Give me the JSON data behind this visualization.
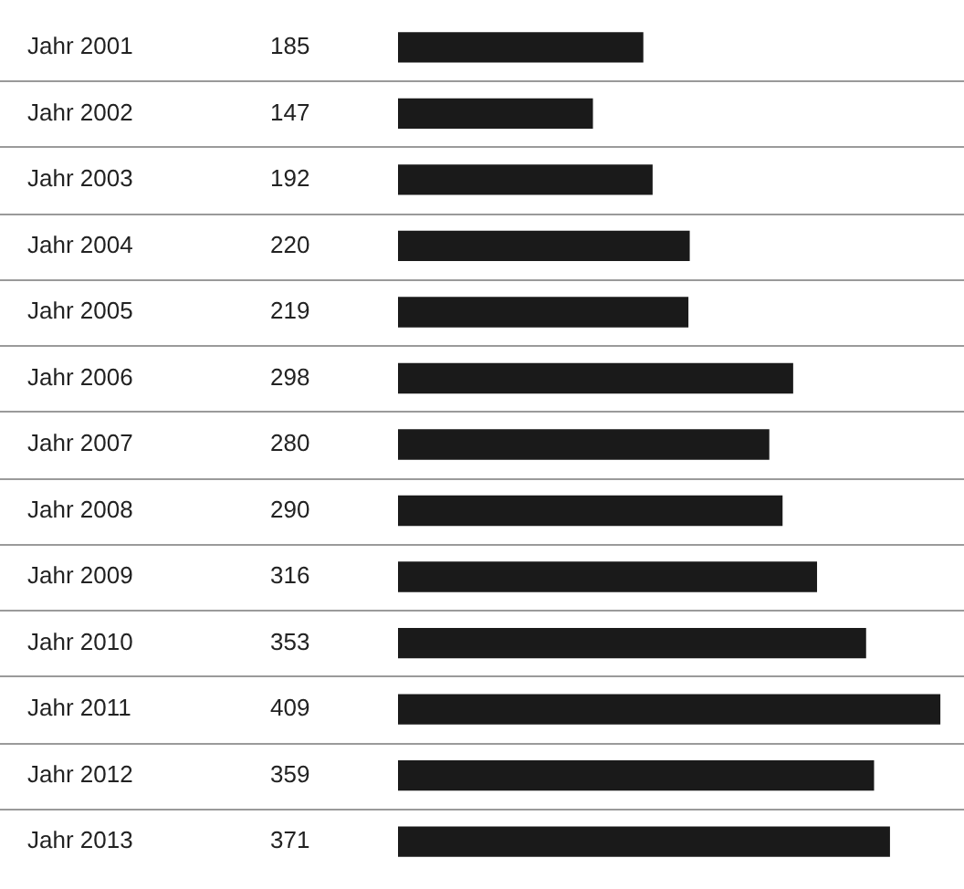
{
  "chart_data": {
    "type": "bar",
    "orientation": "horizontal",
    "categories": [
      "Jahr 2001",
      "Jahr 2002",
      "Jahr 2003",
      "Jahr 2004",
      "Jahr 2005",
      "Jahr 2006",
      "Jahr 2007",
      "Jahr 2008",
      "Jahr 2009",
      "Jahr 2010",
      "Jahr 2011",
      "Jahr 2012",
      "Jahr 2013"
    ],
    "values": [
      185,
      147,
      192,
      220,
      219,
      298,
      280,
      290,
      316,
      353,
      409,
      359,
      371
    ],
    "color": "#1a1a1a",
    "data_labels": true,
    "grid": "y",
    "legend": false
  }
}
